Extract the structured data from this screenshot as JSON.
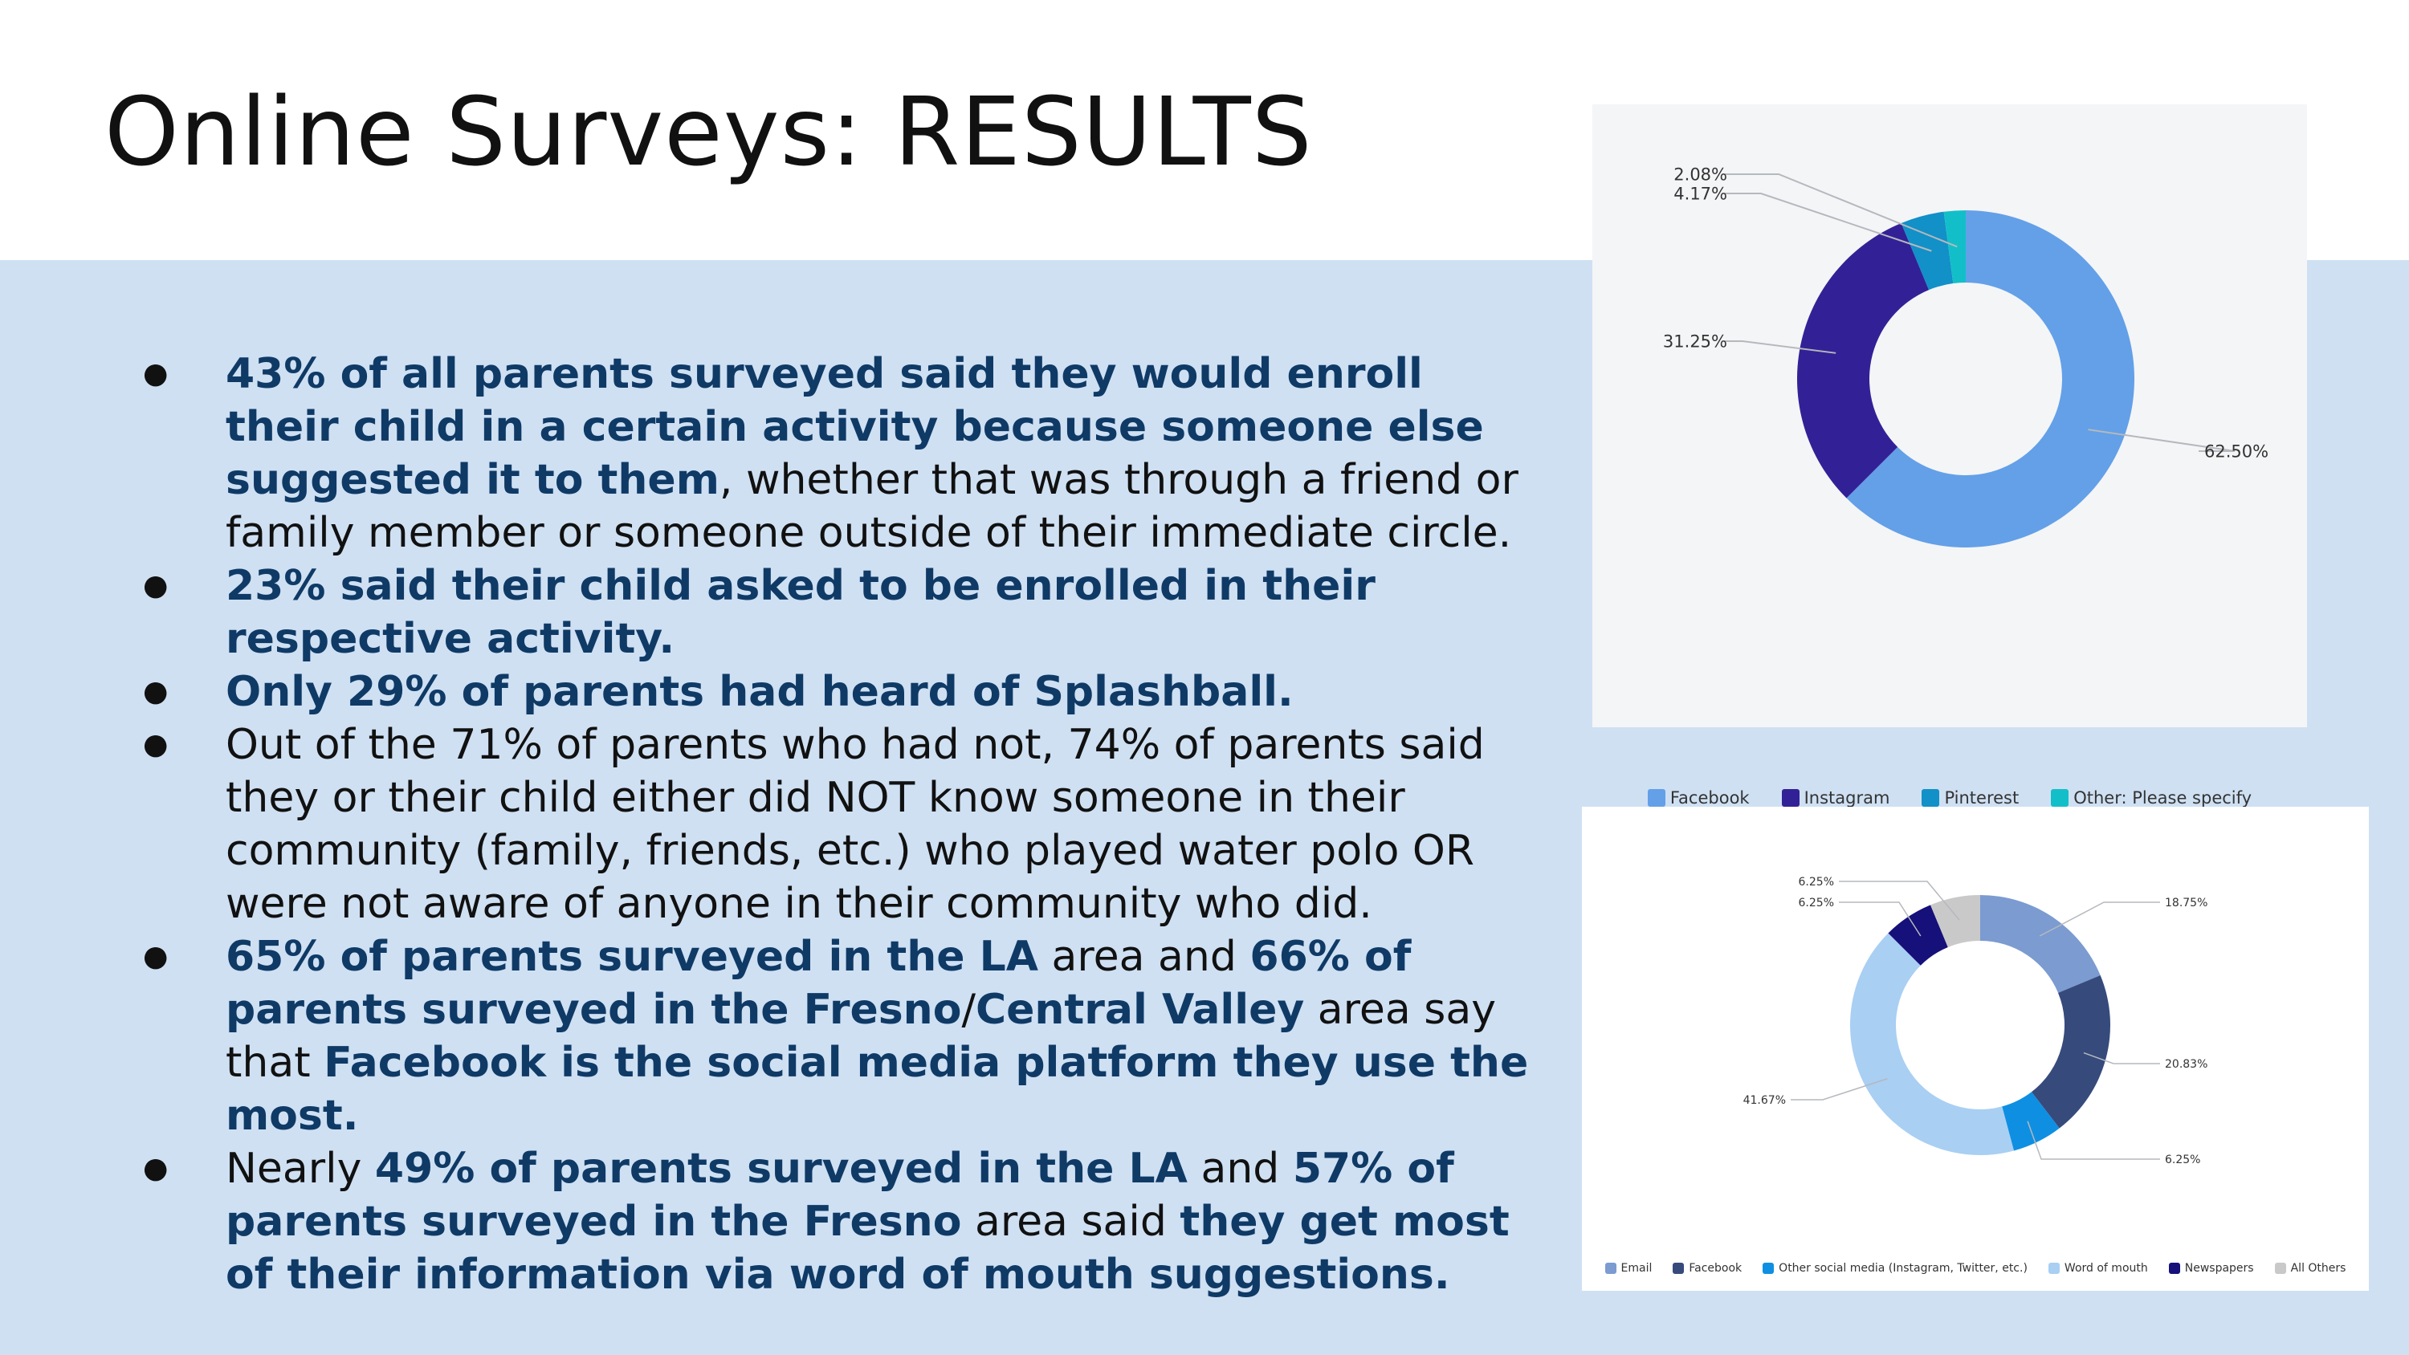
{
  "slide": {
    "title": "Online Surveys: RESULTS"
  },
  "bullets": [
    [
      {
        "text": "43% of all parents surveyed said they would enroll their child in a certain activity because someone else suggested it to them",
        "bold": true
      },
      {
        "text": ", whether that was through a friend or family member or someone outside of their immediate circle.",
        "bold": false
      }
    ],
    [
      {
        "text": "23% said their child asked to be enrolled in their respective activity.",
        "bold": true
      }
    ],
    [
      {
        "text": "Only 29% of parents had heard of Splashball.",
        "bold": true
      }
    ],
    [
      {
        "text": "Out of the 71% of parents who had not, 74% of parents said they or their child either did NOT know someone in their community (family, friends, etc.) who played water polo OR were not aware of anyone in their community who did.",
        "bold": false
      }
    ],
    [
      {
        "text": "65% of parents surveyed in the LA",
        "bold": true
      },
      {
        "text": " area and ",
        "bold": false
      },
      {
        "text": "66% of parents surveyed in the Fresno",
        "bold": true
      },
      {
        "text": "/",
        "bold": false
      },
      {
        "text": "Central Valley",
        "bold": true
      },
      {
        "text": " area say that ",
        "bold": false
      },
      {
        "text": "Facebook is the social media platform they use the most.",
        "bold": true
      }
    ],
    [
      {
        "text": "Nearly ",
        "bold": false
      },
      {
        "text": "49% of parents surveyed in the LA",
        "bold": true
      },
      {
        "text": " and ",
        "bold": false
      },
      {
        "text": "57% of parents surveyed in the Fresno",
        "bold": true
      },
      {
        "text": " area said ",
        "bold": false
      },
      {
        "text": "they get most of their information via word of mouth suggestions.",
        "bold": true
      }
    ]
  ],
  "colors": {
    "background_band": "#cfe0f3",
    "bold_text": "#0f3a66"
  },
  "chart_data": [
    {
      "type": "pie",
      "donut": true,
      "title": "",
      "legend_position": "bottom",
      "slices": [
        {
          "name": "Facebook",
          "value": 62.5,
          "label": "62.50%",
          "color": "#63a0e8"
        },
        {
          "name": "Instagram",
          "value": 31.25,
          "label": "31.25%",
          "color": "#322196"
        },
        {
          "name": "Pinterest",
          "value": 4.17,
          "label": "4.17%",
          "color": "#1290c8"
        },
        {
          "name": "Other: Please specify",
          "value": 2.08,
          "label": "2.08%",
          "color": "#12bfc8"
        }
      ]
    },
    {
      "type": "pie",
      "donut": true,
      "title": "",
      "legend_position": "bottom",
      "slices": [
        {
          "name": "Email",
          "value": 18.75,
          "label": "18.75%",
          "color": "#7b9bd1"
        },
        {
          "name": "Facebook",
          "value": 20.83,
          "label": "20.83%",
          "color": "#364a7c"
        },
        {
          "name": "Other social media (Instagram, Twitter, etc.)",
          "value": 6.25,
          "label": "6.25%",
          "color": "#0f8fe2"
        },
        {
          "name": "Word of mouth",
          "value": 41.67,
          "label": "41.67%",
          "color": "#a9cff3"
        },
        {
          "name": "Newspapers",
          "value": 6.25,
          "label": "6.25%",
          "color": "#16107a"
        },
        {
          "name": "All Others",
          "value": 6.25,
          "label": "6.25%",
          "color": "#c9c9c9"
        }
      ]
    }
  ]
}
